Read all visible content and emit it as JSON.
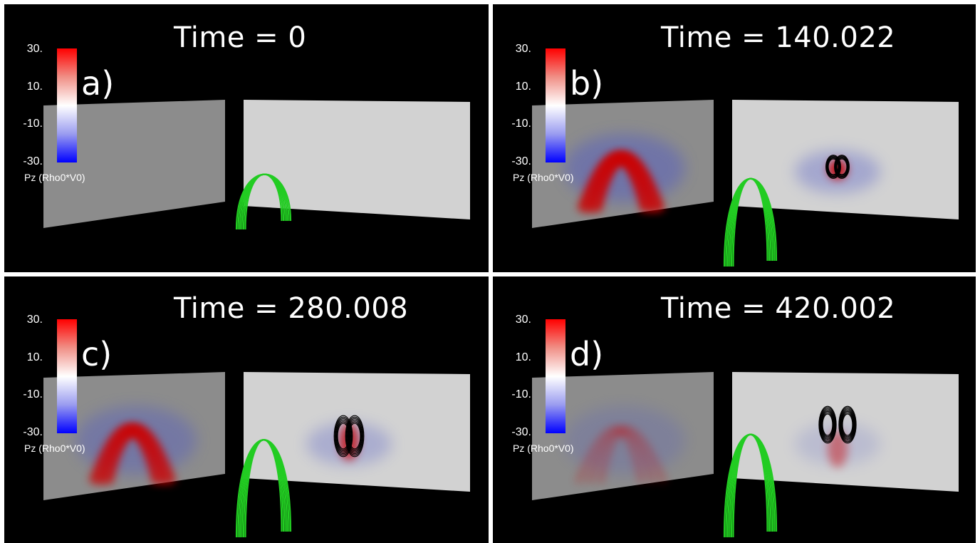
{
  "panels": [
    {
      "letter": "a)",
      "title": "Time = 0",
      "pz_intensity": 0.0,
      "contours": 0,
      "cb_ticks": [
        "30.",
        "10.",
        "-10.",
        "-30."
      ],
      "cb_title": "Pz (Rho0*V0)"
    },
    {
      "letter": "b)",
      "title": "Time = 140.022",
      "pz_intensity": 1.0,
      "contours": 1,
      "cb_ticks": [
        "30.",
        "10.",
        "-10.",
        "-30."
      ],
      "cb_title": "Pz (Rho0*V0)"
    },
    {
      "letter": "c)",
      "title": "Time = 280.008",
      "pz_intensity": 0.85,
      "contours": 2,
      "cb_ticks": [
        "30.",
        "10.",
        "-10.",
        "-30."
      ],
      "cb_title": "Pz (Rho0*V0)"
    },
    {
      "letter": "d)",
      "title": "Time = 420.002",
      "pz_intensity": 0.5,
      "contours": 3,
      "cb_ticks": [
        "30.",
        "10.",
        "-10.",
        "-30."
      ],
      "cb_title": "Pz (Rho0*V0)"
    }
  ],
  "colors": {
    "loop": "#22cc22",
    "positive": "#cc0000",
    "negative": "#5058c8",
    "plane_left": "#8c8c8c",
    "plane_right": "#d2d2d2",
    "contour": "#000000"
  }
}
